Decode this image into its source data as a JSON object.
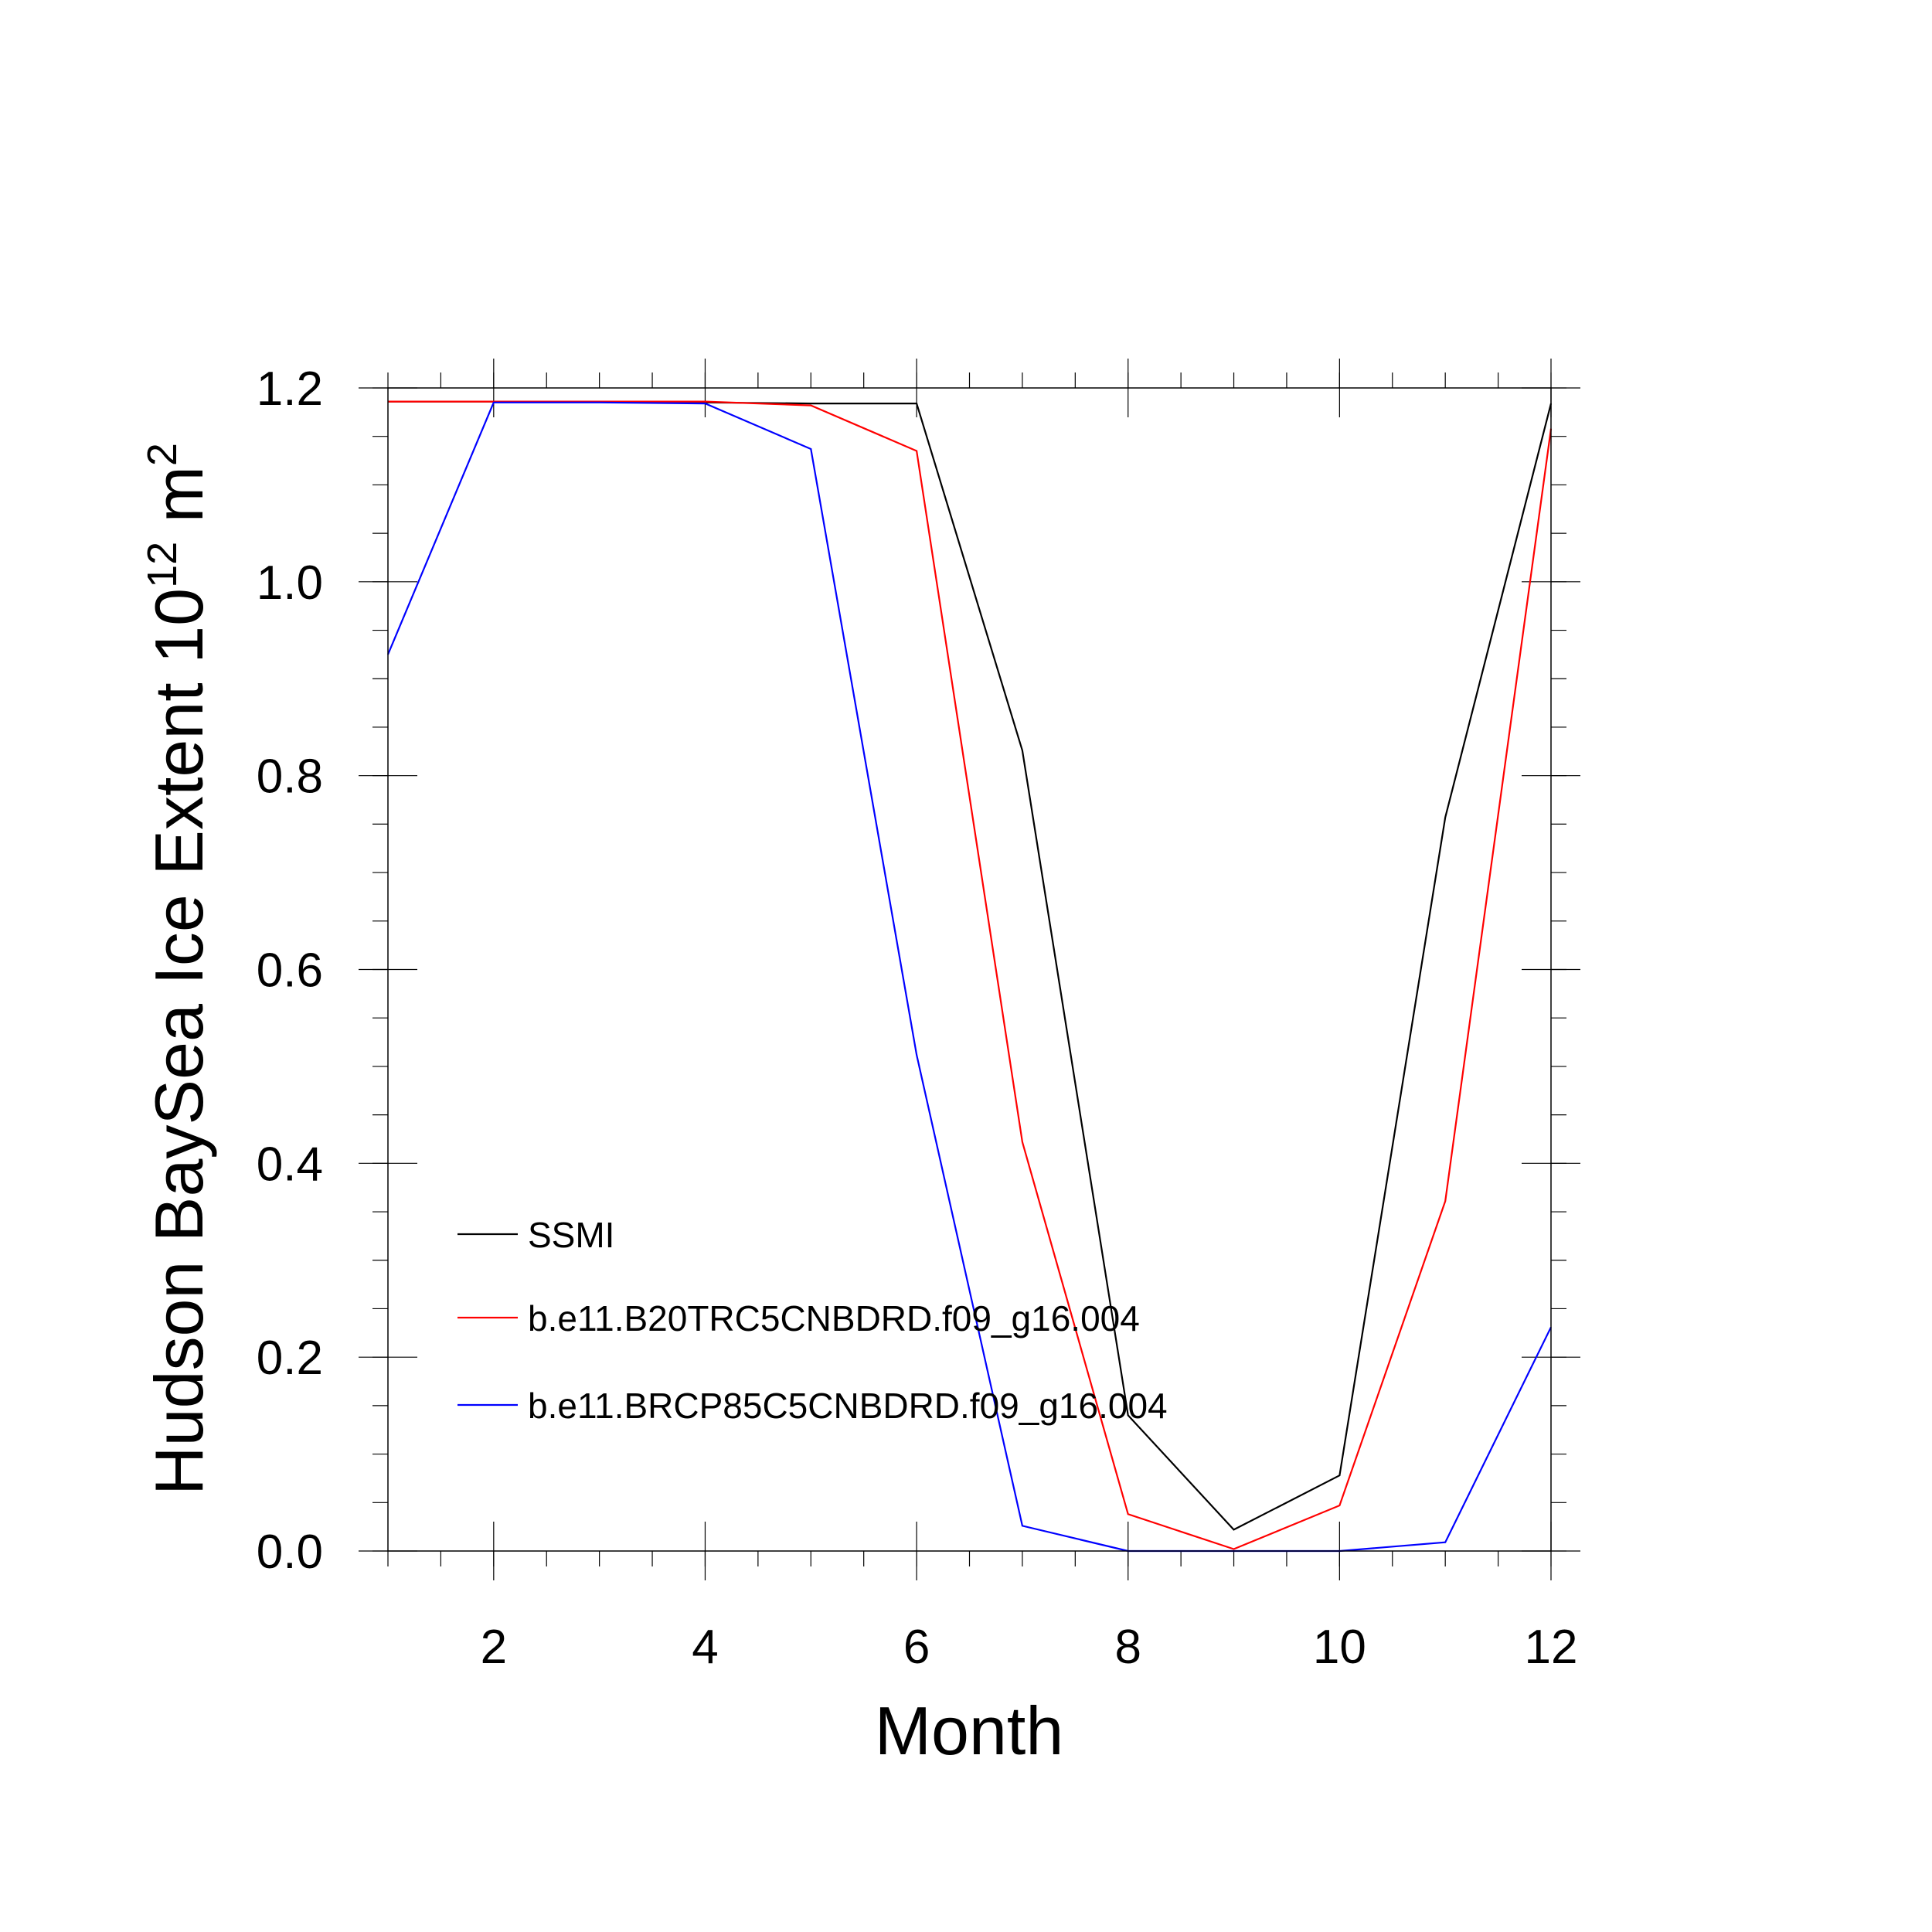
{
  "chart_data": {
    "type": "line",
    "title": "",
    "xlabel": "Month",
    "ylabel": {
      "prefix": "Hudson BaySea Ice Extent 10",
      "exp1": "12",
      "unit": " m",
      "exp2": "2"
    },
    "xlim": [
      1,
      12
    ],
    "ylim": [
      0,
      1.2
    ],
    "xticks": [
      2,
      4,
      6,
      8,
      10,
      12
    ],
    "xtick_labels": [
      "2",
      "4",
      "6",
      "8",
      "10",
      "12"
    ],
    "yticks": [
      0,
      0.2,
      0.4,
      0.6,
      0.8,
      1.0,
      1.2
    ],
    "ytick_labels": [
      "0.0",
      "0.2",
      "0.4",
      "0.6",
      "0.8",
      "1.0",
      "1.2"
    ],
    "x_minor_step": 0.5,
    "y_minor_step": 0.05,
    "legend_position": "lower-left",
    "x": [
      1,
      2,
      3,
      4,
      5,
      6,
      7,
      8,
      9,
      10,
      11,
      12
    ],
    "series": [
      {
        "name": "SSMI",
        "color": "#000000",
        "values": [
          1.186,
          1.186,
          1.186,
          1.185,
          1.184,
          1.184,
          0.826,
          0.14,
          0.022,
          0.078,
          0.757,
          1.184
        ]
      },
      {
        "name": "b.e11.B20TRC5CNBDRD.f09_g16.004",
        "color": "#ff0000",
        "values": [
          1.186,
          1.186,
          1.186,
          1.186,
          1.182,
          1.135,
          0.422,
          0.038,
          0.002,
          0.047,
          0.361,
          1.158
        ]
      },
      {
        "name": "b.e11.BRCP85C5CNBDRD.f09_g16.004",
        "color": "#0000ff",
        "values": [
          0.925,
          1.185,
          1.185,
          1.184,
          1.137,
          0.512,
          0.026,
          0.0,
          0.0,
          0.0,
          0.009,
          0.231
        ]
      }
    ]
  }
}
